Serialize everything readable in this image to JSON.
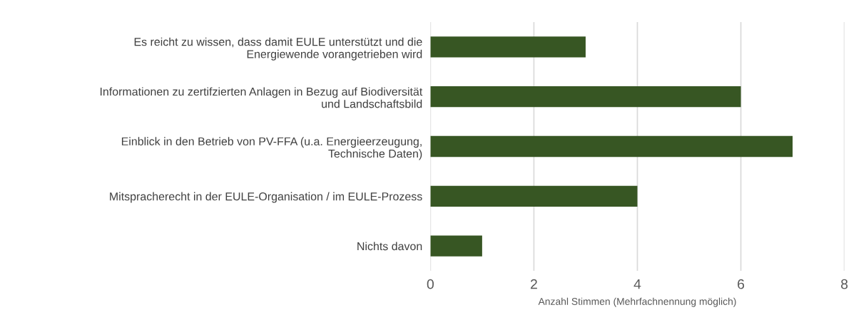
{
  "chart_data": {
    "type": "bar",
    "orientation": "horizontal",
    "xlabel": "Anzahl Stimmen (Mehrfachnennung möglich)",
    "categories": [
      "Es reicht zu wissen, dass damit EULE unterstützt und die\nEnergiewende vorangetrieben wird",
      "Informationen zu zertifzierten Anlagen in Bezug auf Biodiversität\nund Landschaftsbild",
      "Einblick in den Betrieb von PV-FFA (u.a. Energieerzeugung,\nTechnische Daten)",
      "Mitspracherecht in der EULE-Organisation / im EULE-Prozess",
      "Nichts davon"
    ],
    "values": [
      3,
      6,
      7,
      4,
      1
    ],
    "color": "#375623",
    "xlim": [
      0,
      8
    ],
    "xticks": [
      0,
      2,
      4,
      6,
      8
    ],
    "grid": "x",
    "legend": false
  }
}
